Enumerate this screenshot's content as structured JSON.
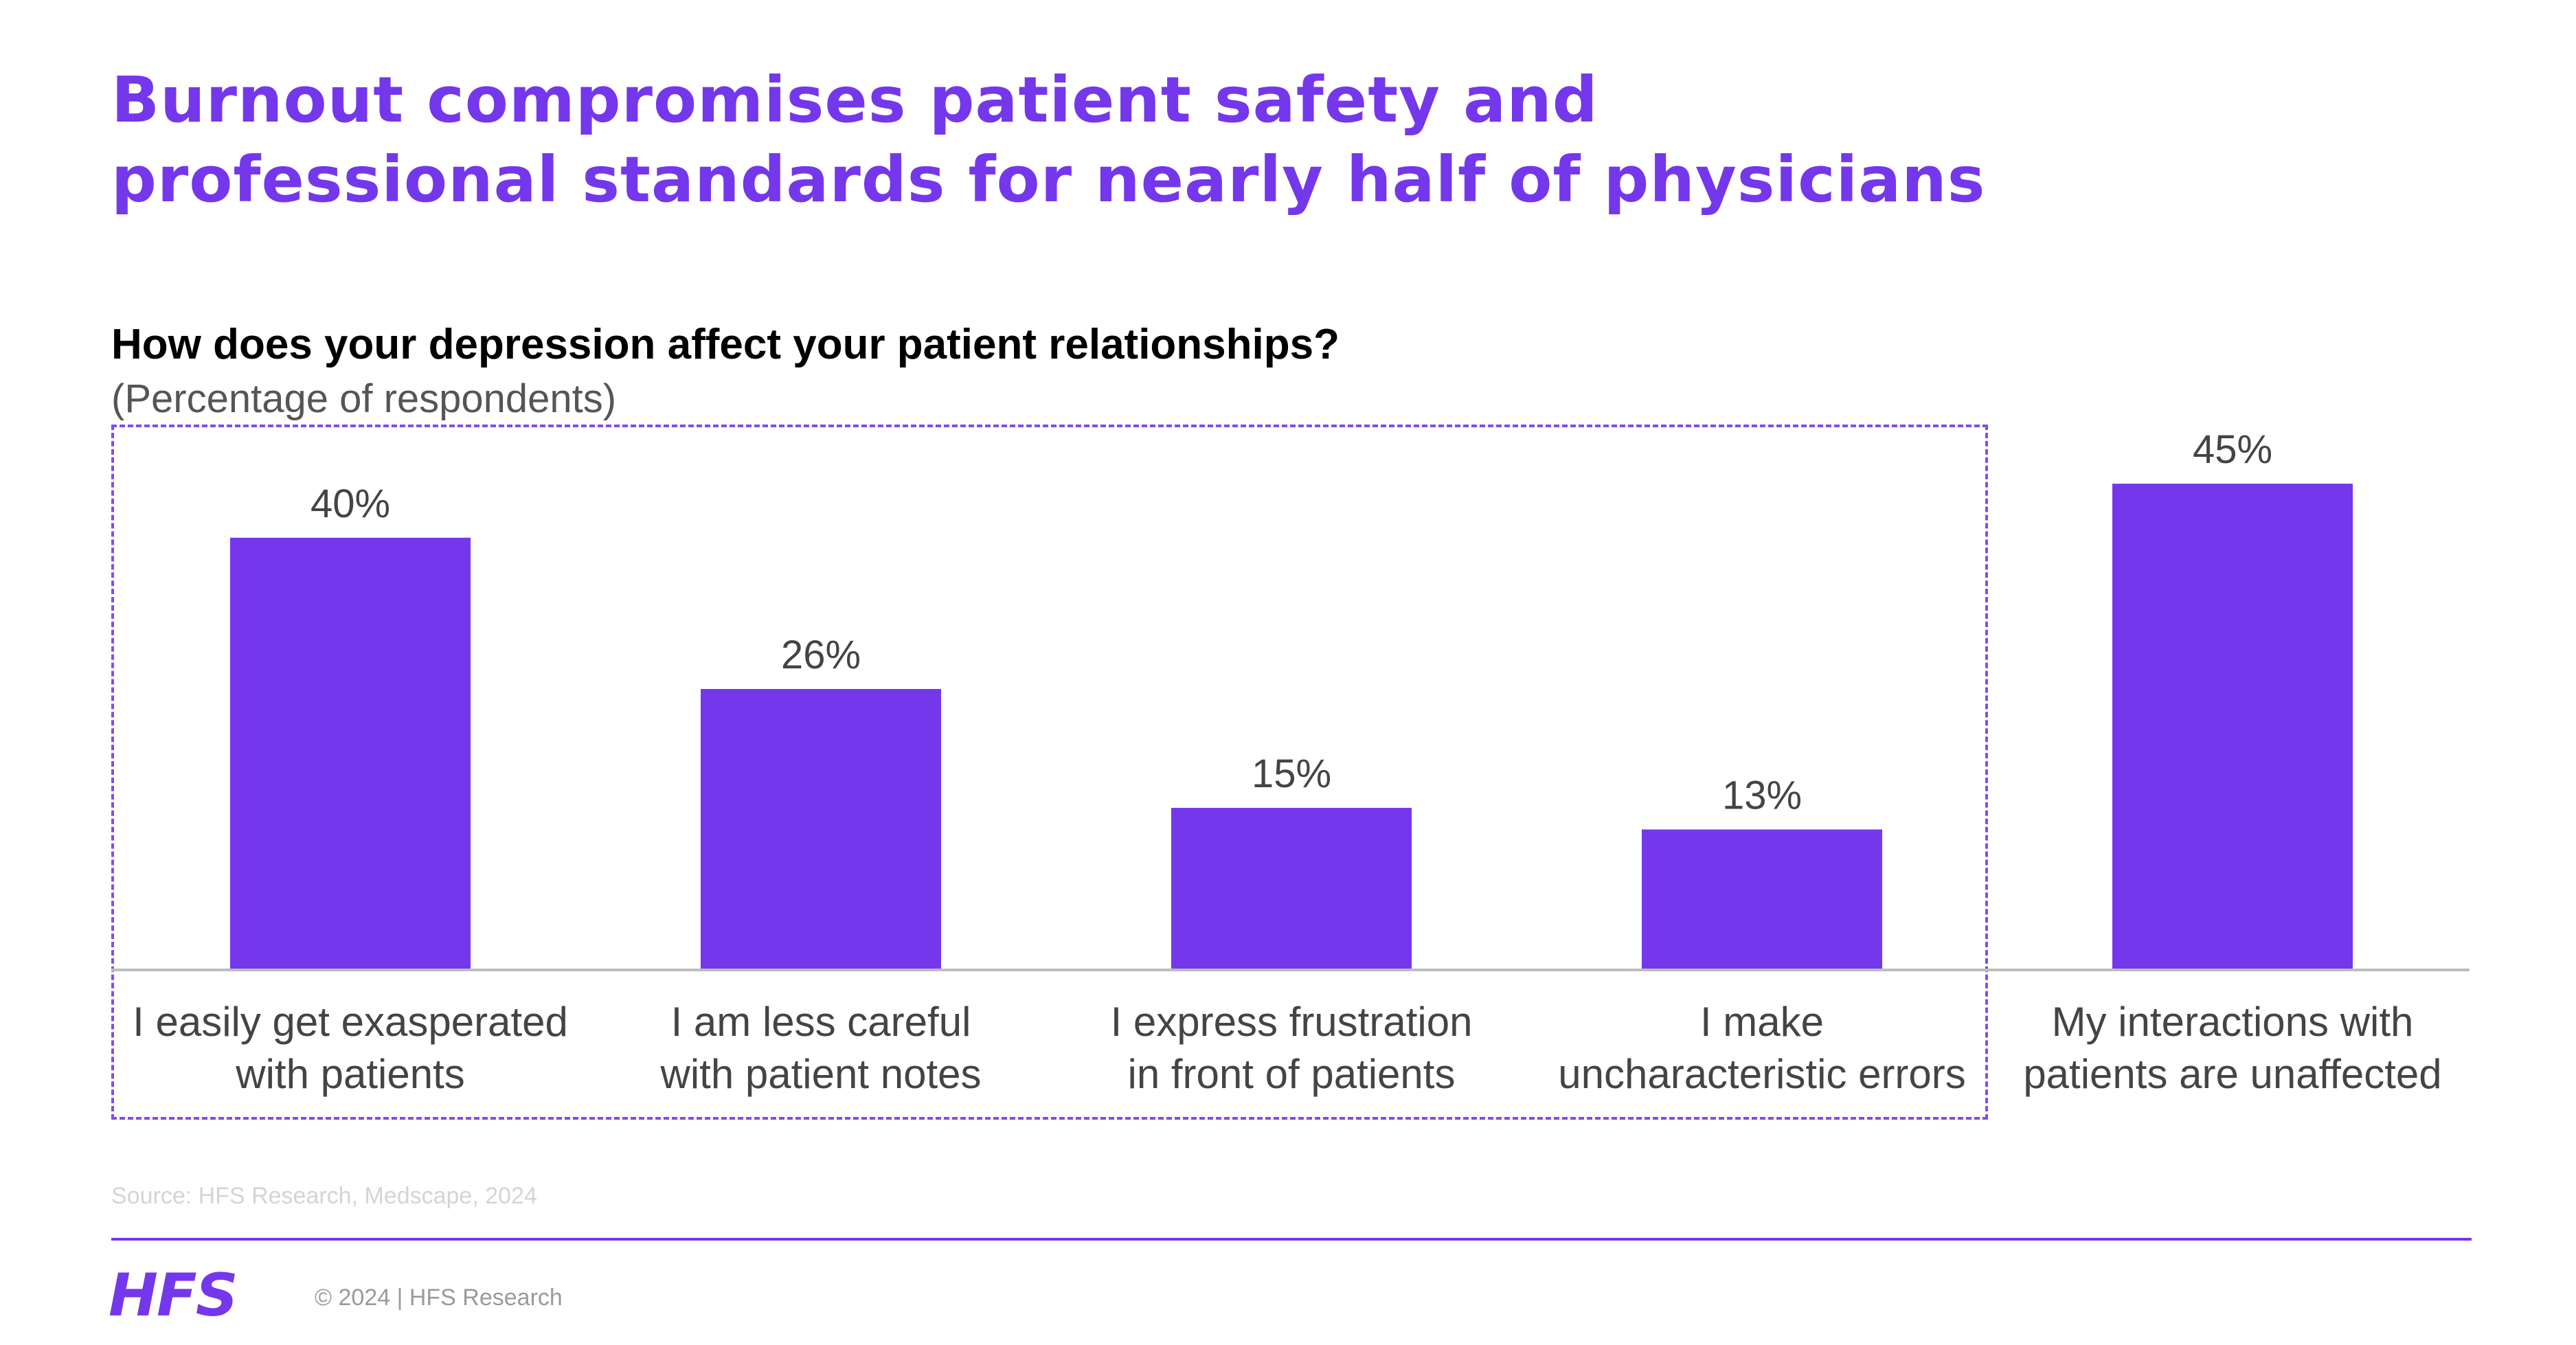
{
  "header": {
    "title_line1": "Burnout compromises patient safety and",
    "title_line2": "professional standards for nearly half of physicians"
  },
  "colors": {
    "accent": "#7437ec",
    "axis": "#bdbdbd",
    "label": "#444444"
  },
  "chart_data": {
    "type": "bar",
    "title": "How does your depression affect your patient relationships?",
    "subtitle": "(Percentage of respondents)",
    "categories": [
      [
        "I easily get exasperated",
        "with patients"
      ],
      [
        "I am less careful",
        "with patient notes"
      ],
      [
        "I express frustration",
        "in front of patients"
      ],
      [
        "I make",
        "uncharacteristic errors"
      ],
      [
        "My interactions with",
        "patients are unaffected"
      ]
    ],
    "values": [
      40,
      26,
      15,
      13,
      45
    ],
    "data_labels": [
      "40%",
      "26%",
      "15%",
      "13%",
      "45%"
    ],
    "ylim": [
      0,
      45
    ],
    "grid": false,
    "highlighted_categories": [
      0,
      1,
      2,
      3
    ]
  },
  "footer": {
    "source": "Source: HFS Research, Medscape, 2024",
    "logo": "HFS",
    "copyright": "© 2024 | HFS Research"
  }
}
